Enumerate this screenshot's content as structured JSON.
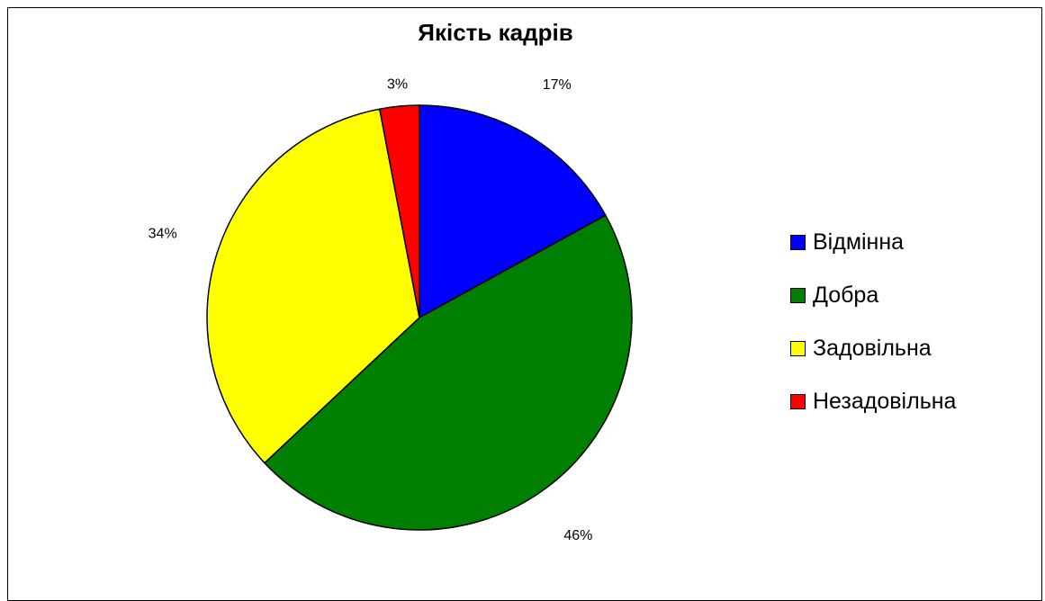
{
  "chart_data": {
    "type": "pie",
    "title": "Якість кадрів",
    "categories": [
      "Відмінна",
      "Добра",
      "Задовільна",
      "Незадовільна"
    ],
    "values": [
      17,
      46,
      34,
      3
    ],
    "labels": [
      "17%",
      "46%",
      "34%",
      "3%"
    ],
    "colors": [
      "#0000FF",
      "#008000",
      "#FFFF00",
      "#FF0000"
    ],
    "legend_position": "right"
  }
}
